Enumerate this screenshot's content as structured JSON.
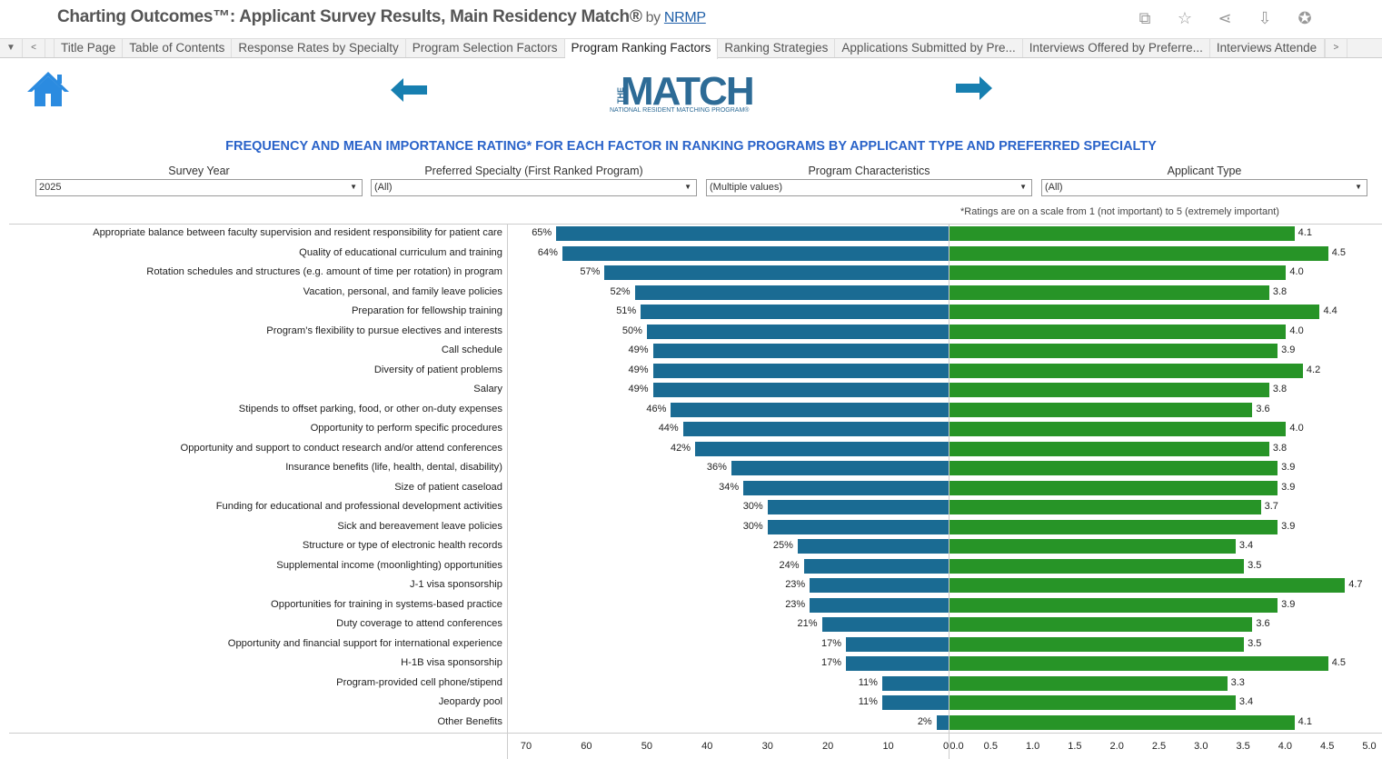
{
  "header": {
    "title": "Charting Outcomes™: Applicant Survey Results, Main Residency Match®",
    "by": "by",
    "link": "NRMP"
  },
  "toolbar": {
    "icons": [
      "duplicate-icon",
      "star-icon",
      "share-icon",
      "download-icon",
      "award-icon"
    ]
  },
  "tabs": [
    "Title Page",
    "Table of Contents",
    "Response Rates by Specialty",
    "Program Selection Factors",
    "Program Ranking Factors",
    "Ranking Strategies",
    "Applications Submitted by Pre...",
    "Interviews Offered by Preferre...",
    "Interviews Attende"
  ],
  "active_tab": "Program Ranking Factors",
  "logo": {
    "text": "MATCH",
    "prefix": "THE",
    "sub": "NATIONAL RESIDENT MATCHING PROGRAM®"
  },
  "heading": "FREQUENCY AND MEAN IMPORTANCE  RATING* FOR EACH FACTOR IN RANKING PROGRAMS BY APPLICANT TYPE AND PREFERRED SPECIALTY",
  "filters": [
    {
      "label": "Survey Year",
      "value": "2025"
    },
    {
      "label": "Preferred Specialty (First Ranked Program)",
      "value": "(All)"
    },
    {
      "label": "Program Characteristics",
      "value": "(Multiple values)"
    },
    {
      "label": "Applicant Type",
      "value": "(All)"
    }
  ],
  "note": "*Ratings are on a scale from 1 (not important) to 5 (extremely important)",
  "colors": {
    "frequency": "#1a6b93",
    "rating": "#279427"
  },
  "chart_data": {
    "type": "bar",
    "categories": [
      "Appropriate balance between faculty supervision and resident responsibility for patient care",
      "Quality of educational curriculum and training",
      "Rotation schedules and structures (e.g. amount of time per rotation) in program",
      "Vacation, personal, and family leave policies",
      "Preparation for fellowship training",
      "Program’s flexibility to pursue electives and interests",
      "Call schedule",
      "Diversity of patient problems",
      "Salary",
      "Stipends to offset parking, food, or other on-duty expenses",
      "Opportunity to perform specific procedures",
      "Opportunity and support to conduct research and/or attend conferences",
      "Insurance benefits (life, health, dental, disability)",
      "Size of patient caseload",
      "Funding for educational and professional development activities",
      "Sick and bereavement leave policies",
      "Structure or type of electronic health records",
      "Supplemental income (moonlighting) opportunities",
      "J-1 visa sponsorship",
      "Opportunities for training in systems-based practice",
      "Duty coverage to attend conferences",
      "Opportunity and financial support for international experience",
      "H-1B visa sponsorship",
      "Program-provided cell phone/stipend",
      "Jeopardy pool",
      "Other Benefits"
    ],
    "series": [
      {
        "values": [
          65,
          64,
          57,
          52,
          51,
          50,
          49,
          49,
          49,
          46,
          44,
          42,
          36,
          34,
          30,
          30,
          25,
          24,
          23,
          23,
          21,
          17,
          17,
          11,
          11,
          2
        ],
        "labels": [
          "65%",
          "64%",
          "57%",
          "52%",
          "51%",
          "50%",
          "49%",
          "49%",
          "49%",
          "46%",
          "44%",
          "42%",
          "36%",
          "34%",
          "30%",
          "30%",
          "25%",
          "24%",
          "23%",
          "23%",
          "21%",
          "17%",
          "17%",
          "11%",
          "11%",
          "2%"
        ]
      },
      {
        "values": [
          4.1,
          4.5,
          4.0,
          3.8,
          4.4,
          4.0,
          3.9,
          4.2,
          3.8,
          3.6,
          4.0,
          3.8,
          3.9,
          3.9,
          3.7,
          3.9,
          3.4,
          3.5,
          4.7,
          3.9,
          3.6,
          3.5,
          4.5,
          3.3,
          3.4,
          4.1
        ],
        "labels": [
          "4.1",
          "4.5",
          "4.0",
          "3.8",
          "4.4",
          "4.0",
          "3.9",
          "4.2",
          "3.8",
          "3.6",
          "4.0",
          "3.8",
          "3.9",
          "3.9",
          "3.7",
          "3.9",
          "3.4",
          "3.5",
          "4.7",
          "3.9",
          "3.6",
          "3.5",
          "4.5",
          "3.3",
          "3.4",
          "4.1"
        ]
      }
    ],
    "left_axis": {
      "range": [
        70,
        0
      ],
      "ticks": [
        "70",
        "60",
        "50",
        "40",
        "30",
        "20",
        "10",
        "0"
      ]
    },
    "right_axis": {
      "range": [
        0,
        5
      ],
      "ticks": [
        "0.0",
        "0.5",
        "1.0",
        "1.5",
        "2.0",
        "2.5",
        "3.0",
        "3.5",
        "4.0",
        "4.5",
        "5.0"
      ]
    }
  }
}
